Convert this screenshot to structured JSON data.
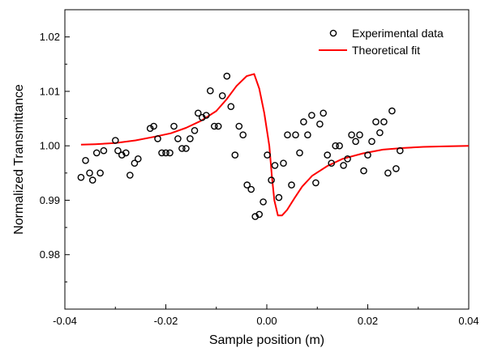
{
  "chart_data": {
    "type": "scatter",
    "title": "",
    "xlabel": "Sample position (m)",
    "ylabel": "Normalized Transmittance",
    "xlim": [
      -0.04,
      0.04
    ],
    "ylim": [
      0.97,
      1.025
    ],
    "xticks": [
      -0.04,
      -0.02,
      0.0,
      0.02,
      0.04
    ],
    "xtick_labels": [
      "-0.04",
      "-0.02",
      "0.00",
      "0.02",
      "0.04"
    ],
    "yticks": [
      0.98,
      0.99,
      1.0,
      1.01,
      1.02
    ],
    "ytick_labels": [
      "0.98",
      "0.99",
      "1.00",
      "1.01",
      "1.02"
    ],
    "grid": false,
    "legend_position": "top-right",
    "series": [
      {
        "name": "Experimental data",
        "type": "scatter",
        "marker": "open-circle",
        "color": "#000000",
        "points": [
          [
            -0.0368,
            0.9942
          ],
          [
            -0.0359,
            0.9973
          ],
          [
            -0.0351,
            0.995
          ],
          [
            -0.0345,
            0.9937
          ],
          [
            -0.0337,
            0.9987
          ],
          [
            -0.033,
            0.995
          ],
          [
            -0.0323,
            0.9991
          ],
          [
            -0.03,
            1.001
          ],
          [
            -0.0295,
            0.9991
          ],
          [
            -0.0287,
            0.9983
          ],
          [
            -0.0279,
            0.9987
          ],
          [
            -0.0271,
            0.9946
          ],
          [
            -0.0262,
            0.9968
          ],
          [
            -0.0255,
            0.9976
          ],
          [
            -0.0231,
            1.0032
          ],
          [
            -0.0224,
            1.0036
          ],
          [
            -0.0216,
            1.0013
          ],
          [
            -0.0208,
            0.9987
          ],
          [
            -0.02,
            0.9987
          ],
          [
            -0.0192,
            0.9987
          ],
          [
            -0.0184,
            1.0036
          ],
          [
            -0.0176,
            1.0013
          ],
          [
            -0.0168,
            0.9995
          ],
          [
            -0.016,
            0.9995
          ],
          [
            -0.0152,
            1.0013
          ],
          [
            -0.0143,
            1.0028
          ],
          [
            -0.0136,
            1.006
          ],
          [
            -0.0128,
            1.0052
          ],
          [
            -0.012,
            1.0056
          ],
          [
            -0.0112,
            1.0101
          ],
          [
            -0.0104,
            1.0036
          ],
          [
            -0.0096,
            1.0036
          ],
          [
            -0.0088,
            1.0092
          ],
          [
            -0.0079,
            1.0128
          ],
          [
            -0.0071,
            1.0072
          ],
          [
            -0.0063,
            0.9983
          ],
          [
            -0.0055,
            1.0036
          ],
          [
            -0.0047,
            1.002
          ],
          [
            -0.0039,
            0.9928
          ],
          [
            -0.0031,
            0.992
          ],
          [
            -0.0023,
            0.987
          ],
          [
            -0.0015,
            0.9874
          ],
          [
            -0.0007,
            0.9897
          ],
          [
            0.0001,
            0.9983
          ],
          [
            0.0009,
            0.9937
          ],
          [
            0.0016,
            0.9964
          ],
          [
            0.0024,
            0.9905
          ],
          [
            0.0033,
            0.9968
          ],
          [
            0.0041,
            1.002
          ],
          [
            0.0049,
            0.9928
          ],
          [
            0.0057,
            1.002
          ],
          [
            0.0065,
            0.9987
          ],
          [
            0.0073,
            1.0044
          ],
          [
            0.0081,
            1.002
          ],
          [
            0.0089,
            1.0056
          ],
          [
            0.0097,
            0.9932
          ],
          [
            0.0105,
            1.004
          ],
          [
            0.0112,
            1.006
          ],
          [
            0.012,
            0.9983
          ],
          [
            0.0128,
            0.9968
          ],
          [
            0.0136,
            1.0
          ],
          [
            0.0144,
            1.0
          ],
          [
            0.0152,
            0.9964
          ],
          [
            0.016,
            0.9976
          ],
          [
            0.0168,
            1.002
          ],
          [
            0.0176,
            1.0008
          ],
          [
            0.0184,
            1.002
          ],
          [
            0.0192,
            0.9954
          ],
          [
            0.02,
            0.9983
          ],
          [
            0.0208,
            1.0008
          ],
          [
            0.0216,
            1.0044
          ],
          [
            0.0224,
            1.0024
          ],
          [
            0.0232,
            1.0044
          ],
          [
            0.024,
            0.995
          ],
          [
            0.0248,
            1.0064
          ],
          [
            0.0256,
            0.9958
          ],
          [
            0.0264,
            0.9991
          ]
        ]
      },
      {
        "name": "Theoretical fit",
        "type": "line",
        "color": "#ff0000",
        "points": [
          [
            -0.0368,
            1.0002
          ],
          [
            -0.034,
            1.0003
          ],
          [
            -0.03,
            1.0005
          ],
          [
            -0.026,
            1.001
          ],
          [
            -0.022,
            1.0017
          ],
          [
            -0.019,
            1.0023
          ],
          [
            -0.016,
            1.0033
          ],
          [
            -0.013,
            1.0046
          ],
          [
            -0.01,
            1.0064
          ],
          [
            -0.008,
            1.0085
          ],
          [
            -0.006,
            1.011
          ],
          [
            -0.004,
            1.0128
          ],
          [
            -0.0025,
            1.0132
          ],
          [
            -0.0015,
            1.0105
          ],
          [
            -0.0005,
            1.006
          ],
          [
            0.0005,
            1.0
          ],
          [
            0.001,
            0.9945
          ],
          [
            0.0015,
            0.99
          ],
          [
            0.0022,
            0.9872
          ],
          [
            0.003,
            0.9872
          ],
          [
            0.004,
            0.9882
          ],
          [
            0.0055,
            0.9904
          ],
          [
            0.007,
            0.9925
          ],
          [
            0.009,
            0.9945
          ],
          [
            0.012,
            0.9963
          ],
          [
            0.015,
            0.9976
          ],
          [
            0.019,
            0.9986
          ],
          [
            0.023,
            0.9993
          ],
          [
            0.027,
            0.9996
          ],
          [
            0.031,
            0.9998
          ],
          [
            0.035,
            0.9999
          ],
          [
            0.04,
            1.0
          ]
        ]
      }
    ]
  }
}
